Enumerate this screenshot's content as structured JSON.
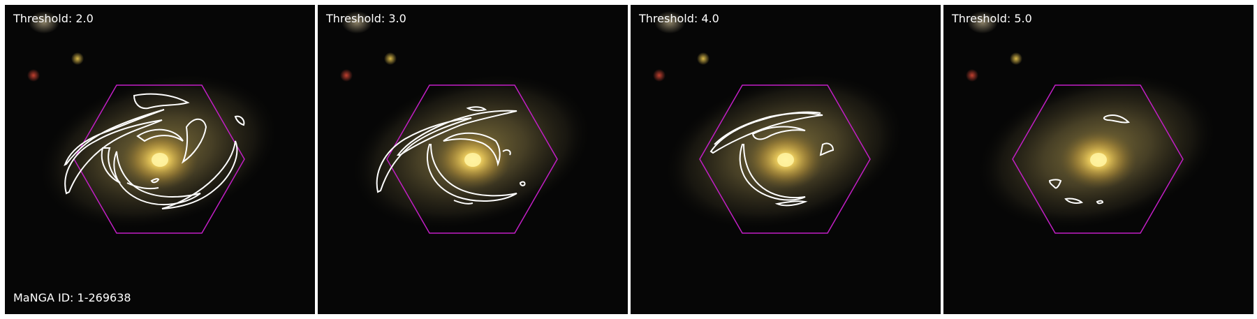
{
  "panels": [
    {
      "threshold_label": "Threshold: 2.0"
    },
    {
      "threshold_label": "Threshold: 3.0"
    },
    {
      "threshold_label": "Threshold: 4.0"
    },
    {
      "threshold_label": "Threshold: 5.0"
    }
  ],
  "manga_id_label": "MaNGA ID: 1-269638",
  "colors": {
    "hexagon": "#c21fc5",
    "contour": "#ffffff",
    "label": "#ffffff",
    "background": "#050505"
  }
}
